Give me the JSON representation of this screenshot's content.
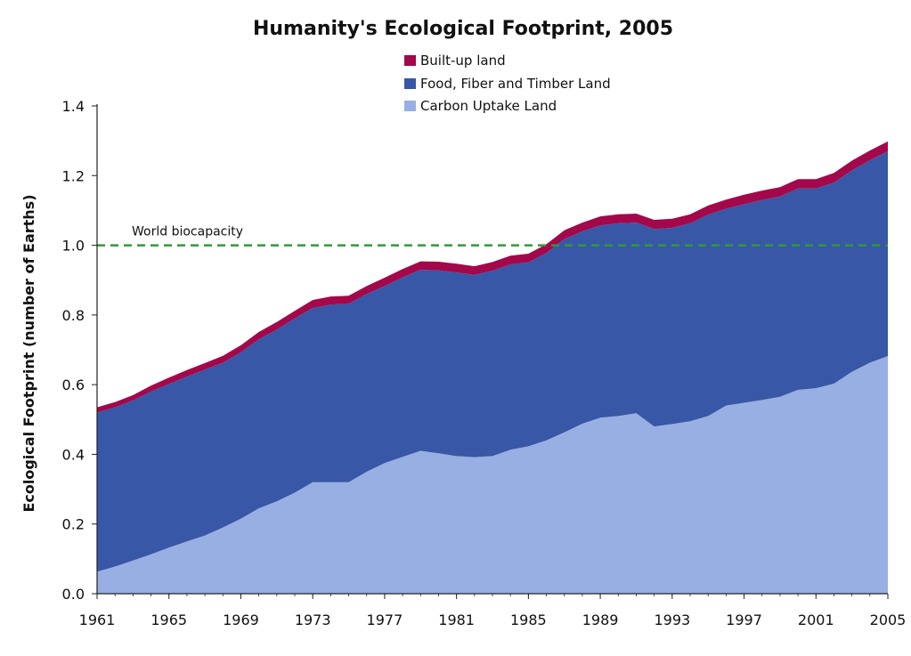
{
  "chart_data": {
    "type": "area",
    "title": "Humanity's Ecological Footprint, 2005",
    "xlabel": "",
    "ylabel": "Ecological Footprint (number of Earths)",
    "ylim": [
      0,
      1.4
    ],
    "yticks": [
      "0.0",
      "0.2",
      "0.4",
      "0.6",
      "0.8",
      "1.0",
      "1.2",
      "1.4"
    ],
    "yticks_values": [
      0,
      0.2,
      0.4,
      0.6,
      0.8,
      1.0,
      1.2,
      1.4
    ],
    "xticks": [
      "1961",
      "1965",
      "1969",
      "1973",
      "1977",
      "1981",
      "1985",
      "1989",
      "1993",
      "1997",
      "2001",
      "2005"
    ],
    "xticks_values": [
      1961,
      1965,
      1969,
      1973,
      1977,
      1981,
      1985,
      1989,
      1993,
      1997,
      2001,
      2005
    ],
    "xlim": [
      1961,
      2005
    ],
    "stacked": true,
    "grid": false,
    "legend_position": "top-center",
    "x": [
      1961,
      1962,
      1963,
      1964,
      1965,
      1966,
      1967,
      1968,
      1969,
      1970,
      1971,
      1972,
      1973,
      1974,
      1975,
      1976,
      1977,
      1978,
      1979,
      1980,
      1981,
      1982,
      1983,
      1984,
      1985,
      1986,
      1987,
      1988,
      1989,
      1990,
      1991,
      1992,
      1993,
      1994,
      1995,
      1996,
      1997,
      1998,
      1999,
      2000,
      2001,
      2002,
      2003,
      2004,
      2005
    ],
    "series": [
      {
        "name": "Carbon Uptake Land",
        "color": "#97afe3",
        "values": [
          0.063,
          0.078,
          0.095,
          0.113,
          0.132,
          0.15,
          0.167,
          0.19,
          0.215,
          0.245,
          0.265,
          0.29,
          0.32,
          0.32,
          0.32,
          0.35,
          0.375,
          0.393,
          0.41,
          0.403,
          0.395,
          0.392,
          0.395,
          0.413,
          0.423,
          0.44,
          0.463,
          0.488,
          0.505,
          0.51,
          0.518,
          0.48,
          0.487,
          0.495,
          0.51,
          0.54,
          0.548,
          0.556,
          0.565,
          0.585,
          0.59,
          0.603,
          0.637,
          0.663,
          0.682
        ]
      },
      {
        "name": "Food, Fiber and Timber Land",
        "color": "#3857a6",
        "values": [
          0.457,
          0.457,
          0.46,
          0.467,
          0.47,
          0.473,
          0.476,
          0.473,
          0.478,
          0.485,
          0.493,
          0.5,
          0.5,
          0.51,
          0.512,
          0.51,
          0.508,
          0.515,
          0.52,
          0.525,
          0.527,
          0.523,
          0.532,
          0.532,
          0.528,
          0.538,
          0.555,
          0.552,
          0.552,
          0.553,
          0.547,
          0.567,
          0.563,
          0.568,
          0.578,
          0.565,
          0.57,
          0.574,
          0.575,
          0.578,
          0.573,
          0.577,
          0.578,
          0.581,
          0.588
        ]
      },
      {
        "name": "Built-up land",
        "color": "#a3084a",
        "values": [
          0.015,
          0.015,
          0.015,
          0.017,
          0.018,
          0.019,
          0.019,
          0.02,
          0.02,
          0.021,
          0.022,
          0.022,
          0.023,
          0.023,
          0.023,
          0.023,
          0.024,
          0.024,
          0.024,
          0.025,
          0.025,
          0.025,
          0.025,
          0.025,
          0.025,
          0.025,
          0.025,
          0.025,
          0.026,
          0.026,
          0.026,
          0.026,
          0.026,
          0.026,
          0.026,
          0.026,
          0.027,
          0.027,
          0.027,
          0.027,
          0.027,
          0.028,
          0.028,
          0.028,
          0.028
        ]
      }
    ],
    "reference_line": {
      "label": "World biocapacity",
      "y": 1.0,
      "color": "#2f9a38",
      "style": "dashed"
    }
  },
  "legend": [
    {
      "label": "Built-up land",
      "color": "#a3084a"
    },
    {
      "label": "Food, Fiber and Timber Land",
      "color": "#3857a6"
    },
    {
      "label": "Carbon Uptake Land",
      "color": "#97afe3"
    }
  ]
}
